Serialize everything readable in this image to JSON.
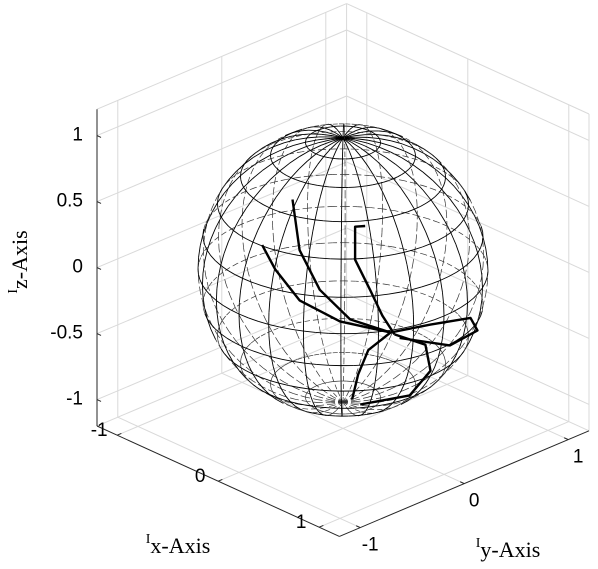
{
  "chart_data": {
    "type": "line3d",
    "xlabel_sup": "I",
    "xlabel": "x-Axis",
    "ylabel_sup": "I",
    "ylabel": "y-Axis",
    "zlabel_sup": "I",
    "zlabel": "z-Axis",
    "xlim": [
      -1.2,
      1.2
    ],
    "ylim": [
      -1.2,
      1.2
    ],
    "zlim": [
      -1.2,
      1.2
    ],
    "xticks": [
      -1,
      0,
      1
    ],
    "yticks": [
      -1,
      0,
      1
    ],
    "zticks": [
      -1,
      {
        "value": -0.5,
        "label": "-0.5"
      },
      0,
      {
        "value": 0.5,
        "label": "0.5"
      },
      1
    ],
    "grid": true,
    "series": [
      {
        "color": "#000000",
        "x": [
          -0.5,
          -0.43,
          -0.23,
          0.07,
          0.47
        ],
        "y": [
          0,
          0,
          0,
          0,
          0
        ],
        "z": [
          0.36,
          0.0,
          -0.23,
          -0.35,
          -0.31
        ]
      },
      {
        "color": "#000000",
        "x": [
          -0.8,
          -0.67,
          -0.43,
          -0.03,
          0.47
        ],
        "y": [
          0,
          0,
          0,
          0,
          0
        ],
        "z": [
          -0.09,
          -0.23,
          -0.38,
          -0.4,
          -0.31
        ]
      },
      {
        "color": "#000000",
        "x": [
          0.22,
          0.12,
          0.12,
          0.27,
          0.39,
          0.51
        ],
        "y": [
          0,
          0,
          0,
          0,
          0,
          0
        ],
        "z": [
          0.41,
          0.37,
          0.12,
          -0.06,
          -0.21,
          -0.31
        ]
      },
      {
        "color": "#000000",
        "x": [
          0.47,
          0.66,
          0.85,
          0.92,
          0.75,
          0.56
        ],
        "y": [
          0,
          0.2,
          0.4,
          0.4,
          0.3,
          0
        ],
        "z": [
          -0.31,
          -0.25,
          -0.2,
          -0.27,
          -0.41,
          -0.32
        ]
      },
      {
        "color": "#000000",
        "x": [
          0.51,
          0.61,
          0.66,
          0.66,
          0.17
        ],
        "y": [
          0,
          0.2,
          0.2,
          0,
          0
        ],
        "z": [
          -0.31,
          -0.42,
          -0.6,
          -0.72,
          -0.96
        ]
      },
      {
        "color": "#000000",
        "x": [
          0.47,
          0.25,
          0.15,
          0.09
        ],
        "y": [
          0,
          0,
          0,
          0
        ],
        "z": [
          -0.31,
          -0.52,
          -0.74,
          -0.95
        ]
      }
    ]
  }
}
